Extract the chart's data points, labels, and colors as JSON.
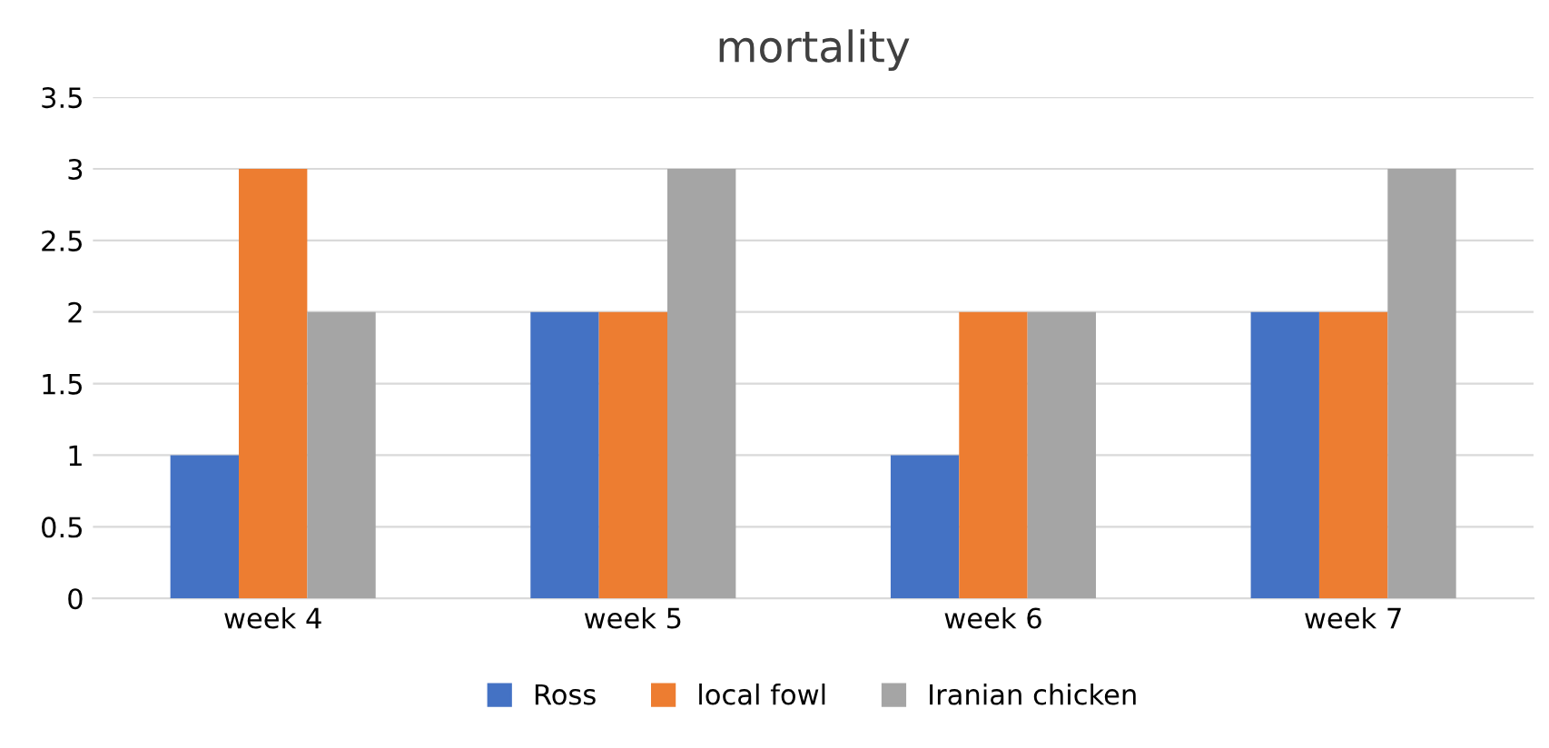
{
  "chart_data": {
    "type": "bar",
    "title": "mortality",
    "categories": [
      "week 4",
      "week 5",
      "week 6",
      "week 7"
    ],
    "series": [
      {
        "name": "Ross",
        "color": "#4472c4",
        "values": [
          1,
          2,
          1,
          2
        ]
      },
      {
        "name": "local fowl",
        "color": "#ed7d31",
        "values": [
          3,
          2,
          2,
          2
        ]
      },
      {
        "name": "Iranian chicken",
        "color": "#a5a5a5",
        "values": [
          2,
          3,
          2,
          3
        ]
      }
    ],
    "ylim": [
      0,
      3.5
    ],
    "yticks": [
      0,
      0.5,
      1,
      1.5,
      2,
      2.5,
      3,
      3.5
    ],
    "grid": "y",
    "legend": "bottom"
  }
}
